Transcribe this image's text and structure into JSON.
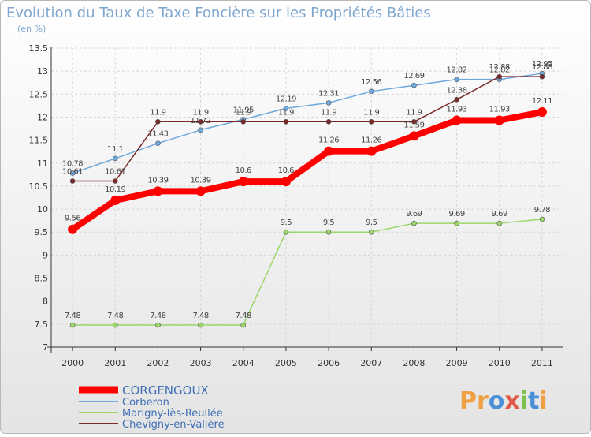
{
  "chart_data": {
    "type": "line",
    "title": "Evolution du Taux de Taxe Foncière sur les Propriétés Bâties",
    "subtitle": "(en %)",
    "x": [
      "2000",
      "2001",
      "2002",
      "2003",
      "2004",
      "2005",
      "2006",
      "2007",
      "2008",
      "2009",
      "2010",
      "2011"
    ],
    "ylim": [
      7,
      13.5
    ],
    "yticks": [
      "7",
      "7.5",
      "8",
      "8.5",
      "9",
      "9.5",
      "10",
      "10.5",
      "11",
      "11.5",
      "12",
      "12.5",
      "13",
      "13.5"
    ],
    "series": [
      {
        "name": "CORGENGOUX",
        "color": "#ff0000",
        "values": [
          9.56,
          10.19,
          10.39,
          10.39,
          10.6,
          10.6,
          11.26,
          11.26,
          11.59,
          11.93,
          11.93,
          12.11
        ],
        "labels": [
          "9.56",
          "10.19",
          "10.39",
          "10.39",
          "10.6",
          "10.6",
          "11.26",
          "11.26",
          "11.59",
          "11.93",
          "11.93",
          "12.11"
        ]
      },
      {
        "name": "Corberon",
        "color": "#6fa8dc",
        "values": [
          10.78,
          11.1,
          11.43,
          11.72,
          11.95,
          12.19,
          12.31,
          12.56,
          12.69,
          12.82,
          12.82,
          12.95
        ],
        "labels": [
          "10.78",
          "11.1",
          "11.43",
          "11.72",
          "11.95",
          "12.19",
          "12.31",
          "12.56",
          "12.69",
          "12.82",
          "12.82",
          "12.95"
        ]
      },
      {
        "name": "Marigny-lès-Reullée",
        "color": "#9bd66a",
        "values": [
          7.48,
          7.48,
          7.48,
          7.48,
          7.48,
          9.5,
          9.5,
          9.5,
          9.69,
          9.69,
          9.69,
          9.78
        ],
        "labels": [
          "7.48",
          "7.48",
          "7.48",
          "7.48",
          "7.48",
          "9.5",
          "9.5",
          "9.5",
          "9.69",
          "9.69",
          "9.69",
          "9.78"
        ]
      },
      {
        "name": "Chevigny-en-Valière",
        "color": "#7a2a2a",
        "values": [
          10.61,
          10.61,
          11.9,
          11.9,
          11.9,
          11.9,
          11.9,
          11.9,
          11.9,
          12.38,
          12.88,
          12.88
        ],
        "labels": [
          "10.61",
          "10.61",
          "11.9",
          "11.9",
          "11.9",
          "11.9",
          "11.9",
          "11.9",
          "11.9",
          "12.38",
          "12.88",
          "12.88"
        ]
      }
    ]
  },
  "brand": {
    "p": "Pr",
    "o": "o",
    "x": "x",
    "i": "i",
    "t": "t",
    "i2": "i"
  }
}
